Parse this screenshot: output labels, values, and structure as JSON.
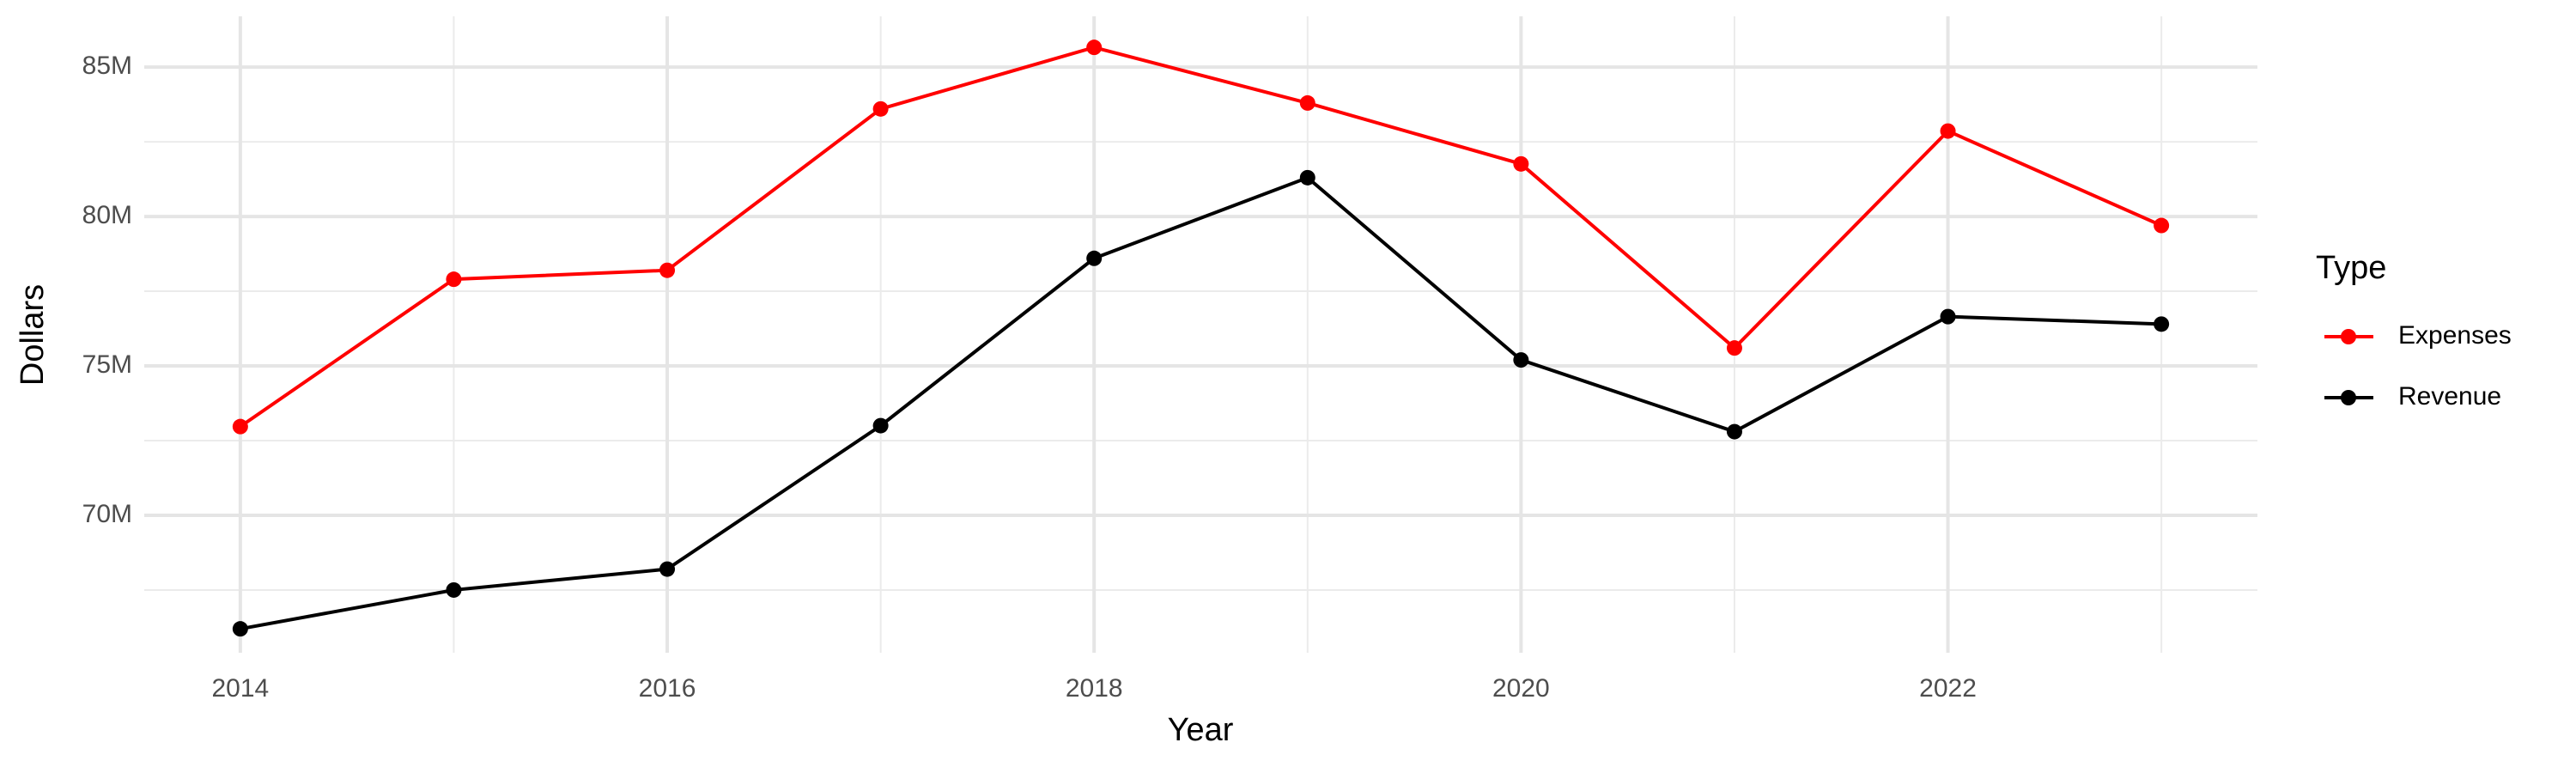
{
  "chart_data": {
    "type": "line",
    "x_label": "Year",
    "y_label": "Dollars",
    "x": [
      2014,
      2015,
      2016,
      2017,
      2018,
      2019,
      2020,
      2021,
      2022,
      2023
    ],
    "series": [
      {
        "name": "Expenses",
        "color": "#ff0000",
        "values": [
          72970000,
          77900000,
          78200000,
          83600000,
          85660000,
          83800000,
          81760000,
          75600000,
          82860000,
          79700000
        ]
      },
      {
        "name": "Revenue",
        "color": "#000000",
        "values": [
          66200000,
          67500000,
          68200000,
          73000000,
          78600000,
          81300000,
          75200000,
          72800000,
          76650000,
          76400000
        ]
      }
    ],
    "xlim": [
      2013.55,
      2023.45
    ],
    "xticks": [
      2014,
      2016,
      2018,
      2020,
      2022
    ],
    "ylim": [
      65400000,
      86700000
    ],
    "yticks": [
      {
        "value": 70000000,
        "label": "70M"
      },
      {
        "value": 75000000,
        "label": "75M"
      },
      {
        "value": 80000000,
        "label": "80M"
      },
      {
        "value": 85000000,
        "label": "85M"
      }
    ],
    "grid": true,
    "legend": "right",
    "legend_title": "Type"
  }
}
